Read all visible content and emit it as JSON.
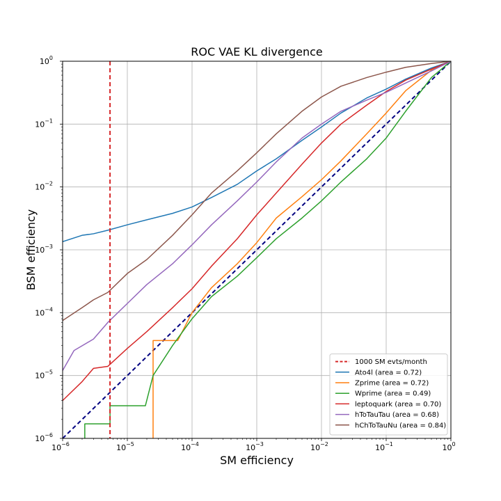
{
  "chart_data": {
    "type": "line",
    "title": "ROC VAE KL divergence",
    "xlabel": "SM efficiency",
    "ylabel": "BSM efficiency",
    "xscale": "log",
    "yscale": "log",
    "xlim": [
      1e-06,
      1
    ],
    "ylim": [
      1e-06,
      1
    ],
    "grid": true,
    "legend_position": "lower-right",
    "x_ticks": [
      {
        "base": "10",
        "exp": "−6"
      },
      {
        "base": "10",
        "exp": "−5"
      },
      {
        "base": "10",
        "exp": "−4"
      },
      {
        "base": "10",
        "exp": "−3"
      },
      {
        "base": "10",
        "exp": "−2"
      },
      {
        "base": "10",
        "exp": "−1"
      },
      {
        "base": "10",
        "exp": "0"
      }
    ],
    "y_ticks": [
      {
        "base": "10",
        "exp": "−6"
      },
      {
        "base": "10",
        "exp": "−5"
      },
      {
        "base": "10",
        "exp": "−4"
      },
      {
        "base": "10",
        "exp": "−3"
      },
      {
        "base": "10",
        "exp": "−2"
      },
      {
        "base": "10",
        "exp": "−1"
      },
      {
        "base": "10",
        "exp": "0"
      }
    ],
    "reference_lines": [
      {
        "name": "1000 SM evts/month",
        "type": "vertical",
        "x": 5.4e-06,
        "color": "#d62728",
        "style": "dashed",
        "in_legend": true
      },
      {
        "name": "random",
        "type": "diagonal",
        "color": "#000080",
        "style": "dashed",
        "in_legend": false
      }
    ],
    "series": [
      {
        "name": "Ato4l (area = 0.72)",
        "color": "#1f77b4",
        "x": [
          1e-06,
          2e-06,
          3e-06,
          5e-06,
          1e-05,
          2e-05,
          5e-05,
          0.0001,
          0.0002,
          0.0005,
          0.001,
          0.002,
          0.005,
          0.01,
          0.02,
          0.05,
          0.1,
          0.2,
          0.5,
          1
        ],
        "y": [
          0.00135,
          0.0017,
          0.0018,
          0.00205,
          0.0025,
          0.003,
          0.0038,
          0.0048,
          0.0068,
          0.011,
          0.018,
          0.028,
          0.055,
          0.09,
          0.15,
          0.26,
          0.36,
          0.52,
          0.78,
          1
        ]
      },
      {
        "name": "Zprime (area = 0.72)",
        "color": "#ff7f0e",
        "x": [
          2.5e-05,
          2.5e-05,
          6e-05,
          0.0001,
          0.0002,
          0.0005,
          0.001,
          0.002,
          0.005,
          0.01,
          0.02,
          0.05,
          0.1,
          0.2,
          0.5,
          1
        ],
        "y": [
          1e-06,
          3.6e-05,
          3.6e-05,
          0.0001,
          0.00025,
          0.0006,
          0.0013,
          0.0032,
          0.007,
          0.013,
          0.026,
          0.07,
          0.15,
          0.34,
          0.72,
          1
        ]
      },
      {
        "name": "Wprime (area = 0.49)",
        "color": "#2ca02c",
        "x": [
          2.2e-06,
          2.2e-06,
          5.4e-06,
          5.4e-06,
          1.9e-05,
          2.5e-05,
          5e-05,
          0.0001,
          0.0002,
          0.0005,
          0.001,
          0.002,
          0.005,
          0.01,
          0.02,
          0.05,
          0.1,
          0.2,
          0.5,
          1
        ],
        "y": [
          1e-06,
          1.7e-06,
          1.7e-06,
          3.3e-06,
          3.3e-06,
          1e-05,
          3e-05,
          8e-05,
          0.00018,
          0.00038,
          0.00075,
          0.0015,
          0.0032,
          0.006,
          0.012,
          0.028,
          0.06,
          0.16,
          0.55,
          1
        ]
      },
      {
        "name": "leptoquark (area = 0.70)",
        "color": "#d62728",
        "x": [
          1e-06,
          2e-06,
          3e-06,
          5e-06,
          1e-05,
          2e-05,
          5e-05,
          0.0001,
          0.0002,
          0.0005,
          0.001,
          0.002,
          0.005,
          0.01,
          0.02,
          0.05,
          0.1,
          0.2,
          0.5,
          1
        ],
        "y": [
          4e-06,
          8e-06,
          1.3e-05,
          1.4e-05,
          2.7e-05,
          5e-05,
          0.00012,
          0.00024,
          0.00055,
          0.0015,
          0.0036,
          0.008,
          0.023,
          0.05,
          0.1,
          0.2,
          0.33,
          0.5,
          0.75,
          1
        ]
      },
      {
        "name": "hToTauTau (area = 0.68)",
        "color": "#9467bd",
        "x": [
          1e-06,
          1.5e-06,
          3e-06,
          5e-06,
          1e-05,
          2e-05,
          5e-05,
          0.0001,
          0.0002,
          0.0005,
          0.001,
          0.002,
          0.005,
          0.01,
          0.02,
          0.05,
          0.1,
          0.2,
          0.5,
          1
        ],
        "y": [
          1.2e-05,
          2.5e-05,
          3.8e-05,
          7e-05,
          0.00014,
          0.00028,
          0.0006,
          0.0012,
          0.0025,
          0.006,
          0.012,
          0.025,
          0.06,
          0.1,
          0.16,
          0.24,
          0.32,
          0.45,
          0.7,
          1
        ]
      },
      {
        "name": "hChToTauNu (area = 0.84)",
        "color": "#8c564b",
        "x": [
          1e-06,
          2e-06,
          3e-06,
          5e-06,
          1e-05,
          2e-05,
          5e-05,
          0.0001,
          0.0002,
          0.0005,
          0.001,
          0.002,
          0.005,
          0.01,
          0.02,
          0.05,
          0.1,
          0.2,
          0.5,
          1
        ],
        "y": [
          7.5e-05,
          0.00012,
          0.00016,
          0.00021,
          0.00042,
          0.0007,
          0.0017,
          0.0036,
          0.008,
          0.018,
          0.035,
          0.07,
          0.16,
          0.27,
          0.4,
          0.55,
          0.67,
          0.8,
          0.92,
          1
        ]
      }
    ]
  }
}
